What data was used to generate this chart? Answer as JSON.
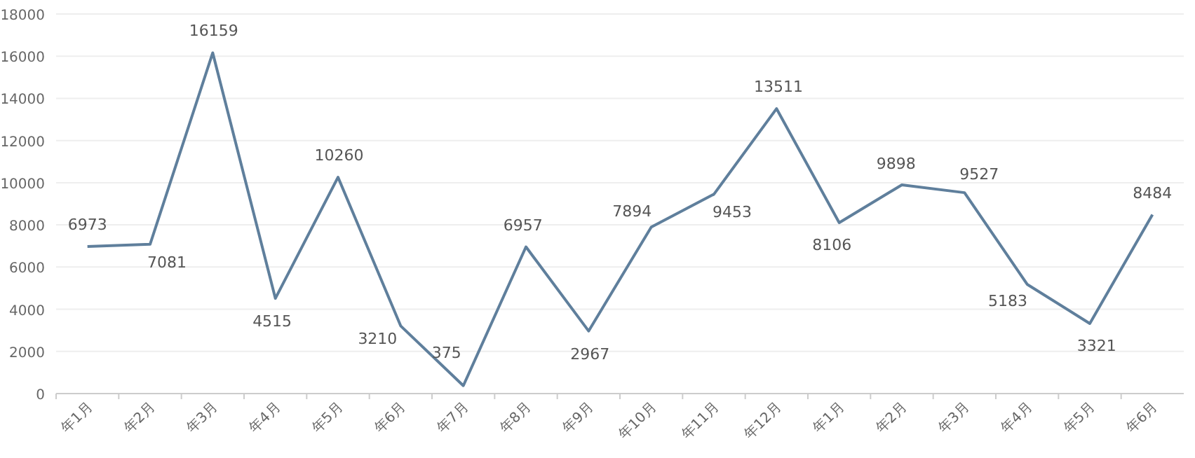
{
  "chart_data": {
    "type": "line",
    "categories": [
      "年1月",
      "年2月",
      "年3月",
      "年4月",
      "年5月",
      "年6月",
      "年7月",
      "年8月",
      "年9月",
      "年10月",
      "年11月",
      "年12月",
      "年1月",
      "年2月",
      "年3月",
      "年4月",
      "年5月",
      "年6月"
    ],
    "series": [
      {
        "color": "#5f7f9c",
        "values": [
          6973,
          7081,
          16159,
          4515,
          10260,
          3210,
          375,
          6957,
          2967,
          7894,
          9453,
          13511,
          8106,
          9898,
          9527,
          5183,
          3321,
          8484
        ]
      }
    ],
    "ylim": [
      0,
      18000
    ],
    "yticks": [
      0,
      2000,
      4000,
      6000,
      8000,
      10000,
      12000,
      14000,
      16000,
      18000
    ],
    "grid": "y",
    "data_labels": true,
    "marker": "none",
    "line_style": "solid"
  }
}
